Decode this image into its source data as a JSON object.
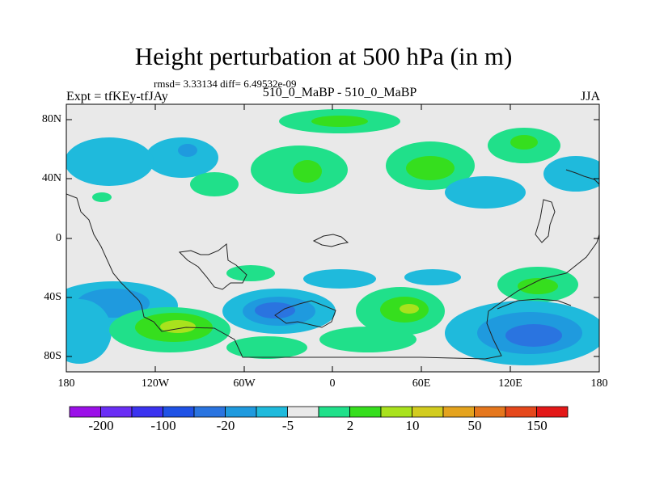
{
  "header": {
    "title": "Height perturbation at 500 hPa (in m)",
    "stats": "rmsd= 3.33134 diff= 6.49532e-09",
    "left": "Expt = tfKEy-tfJAy",
    "center": "510_0_MaBP - 510_0_MaBP",
    "right": "JJA"
  },
  "axes": {
    "y_labels": [
      "80N",
      "40N",
      "0",
      "40S",
      "80S"
    ],
    "x_labels": [
      "180",
      "120W",
      "60W",
      "0",
      "60E",
      "120E",
      "180"
    ]
  },
  "colorbar": {
    "labels": [
      "-200",
      "-100",
      "-20",
      "-5",
      "2",
      "10",
      "50",
      "150"
    ],
    "colors": [
      "#9b10e8",
      "#6a2ef5",
      "#3b33f0",
      "#1f52e6",
      "#2a74e0",
      "#1f9ade",
      "#1fbadc",
      "#e9e9e9",
      "#20e08a",
      "#36de1e",
      "#a9e21d",
      "#d2cc1f",
      "#e4a31e",
      "#e5771d",
      "#e5481c",
      "#e31818"
    ]
  },
  "map": {
    "background": "#e9e9e9",
    "coast_color": "#222222"
  }
}
